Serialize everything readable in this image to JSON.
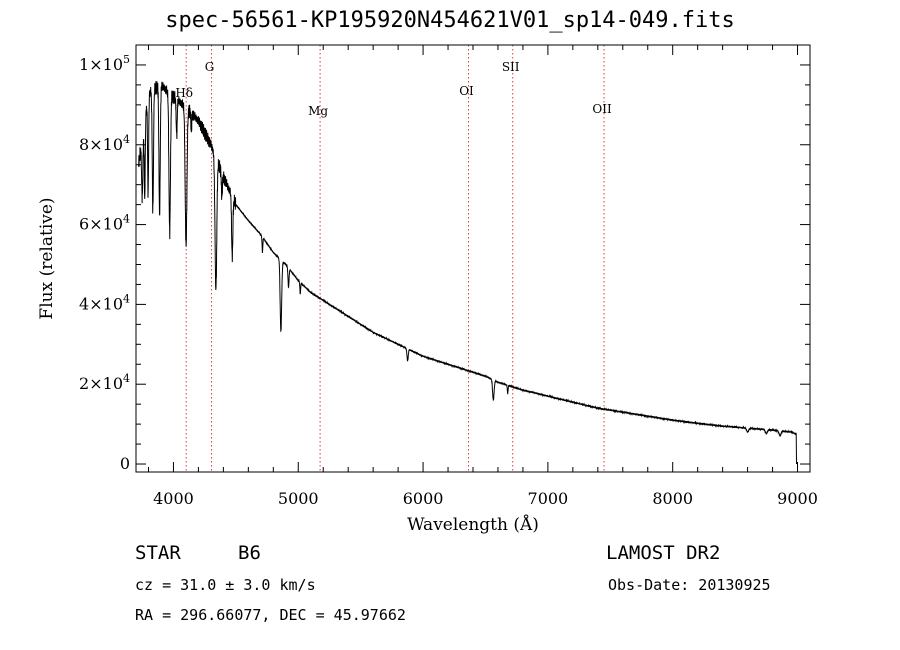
{
  "title": "spec-56561-KP195920N454621V01_sp14-049.fits",
  "info": {
    "class_label": "STAR",
    "subclass_label": "B6",
    "survey": "LAMOST DR2",
    "cz": "cz = 31.0 ± 3.0 km/s",
    "obs_date": "Obs-Date: 20130925",
    "coords": "RA = 296.66077, DEC =  45.97662"
  },
  "chart_data": {
    "type": "line",
    "title": "spec-56561-KP195920N454621V01_sp14-049.fits",
    "xlabel": "Wavelength (Å)",
    "ylabel": "Flux (relative)",
    "xlim": [
      3700,
      9100
    ],
    "ylim": [
      -2000,
      105000
    ],
    "xticks": [
      {
        "value": 4000,
        "label": "4000"
      },
      {
        "value": 5000,
        "label": "5000"
      },
      {
        "value": 6000,
        "label": "6000"
      },
      {
        "value": 7000,
        "label": "7000"
      },
      {
        "value": 8000,
        "label": "8000"
      },
      {
        "value": 9000,
        "label": "9000"
      }
    ],
    "yticks": [
      {
        "value": 0,
        "label": "0",
        "exp": ""
      },
      {
        "value": 20000,
        "label": "2×10",
        "exp": "4"
      },
      {
        "value": 40000,
        "label": "4×10",
        "exp": "4"
      },
      {
        "value": 60000,
        "label": "6×10",
        "exp": "4"
      },
      {
        "value": 80000,
        "label": "8×10",
        "exp": "4"
      },
      {
        "value": 100000,
        "label": "1×10",
        "exp": "5"
      }
    ],
    "line_color": "#000000",
    "marker_color": "#e0403a",
    "lines": [
      {
        "label": "Hδ",
        "x": 4102,
        "label_y": 92000
      },
      {
        "label": "G",
        "x": 4305,
        "label_y": 98500
      },
      {
        "label": "Mg",
        "x": 5175,
        "label_y": 87500
      },
      {
        "label": "OI",
        "x": 6364,
        "label_y": 92500
      },
      {
        "label": "SII",
        "x": 6718,
        "label_y": 98500
      },
      {
        "label": "OII",
        "x": 7450,
        "label_y": 88000
      }
    ],
    "continuum": [
      [
        3720,
        75000
      ],
      [
        3800,
        93000
      ],
      [
        3900,
        95000
      ],
      [
        4000,
        92000
      ],
      [
        4100,
        89500
      ],
      [
        4200,
        86000
      ],
      [
        4300,
        80000
      ],
      [
        4400,
        72000
      ],
      [
        4500,
        65000
      ],
      [
        4600,
        61000
      ],
      [
        4700,
        57500
      ],
      [
        4800,
        53000
      ],
      [
        4900,
        50000
      ],
      [
        5000,
        46000
      ],
      [
        5100,
        43000
      ],
      [
        5200,
        41000
      ],
      [
        5300,
        39000
      ],
      [
        5400,
        37000
      ],
      [
        5500,
        35000
      ],
      [
        5600,
        33000
      ],
      [
        5700,
        31500
      ],
      [
        5800,
        30000
      ],
      [
        5900,
        28500
      ],
      [
        6000,
        27000
      ],
      [
        6100,
        26000
      ],
      [
        6200,
        25000
      ],
      [
        6300,
        24000
      ],
      [
        6400,
        23000
      ],
      [
        6500,
        22000
      ],
      [
        6600,
        20500
      ],
      [
        6700,
        19500
      ],
      [
        6800,
        18500
      ],
      [
        6900,
        17800
      ],
      [
        7000,
        17000
      ],
      [
        7200,
        15500
      ],
      [
        7400,
        14000
      ],
      [
        7600,
        13000
      ],
      [
        7800,
        12000
      ],
      [
        8000,
        11000
      ],
      [
        8200,
        10200
      ],
      [
        8400,
        9500
      ],
      [
        8600,
        9000
      ],
      [
        8800,
        8500
      ],
      [
        8950,
        8000
      ],
      [
        8990,
        7500
      ]
    ],
    "absorption": [
      [
        3750,
        15000,
        5
      ],
      [
        3770,
        20000,
        4
      ],
      [
        3797,
        25000,
        4
      ],
      [
        3835,
        30000,
        5
      ],
      [
        3889,
        33000,
        5
      ],
      [
        3970,
        35000,
        6
      ],
      [
        4026,
        9000,
        4
      ],
      [
        4101,
        35000,
        7
      ],
      [
        4143,
        5000,
        3
      ],
      [
        4340,
        33000,
        7
      ],
      [
        4388,
        6000,
        4
      ],
      [
        4471,
        15000,
        5
      ],
      [
        4713,
        4000,
        3
      ],
      [
        4861,
        18000,
        6
      ],
      [
        4922,
        5000,
        4
      ],
      [
        5016,
        3000,
        3
      ],
      [
        5876,
        3000,
        5
      ],
      [
        6563,
        5000,
        6
      ],
      [
        6678,
        2000,
        3
      ],
      [
        8600,
        1000,
        8
      ],
      [
        8750,
        1000,
        8
      ],
      [
        8860,
        1200,
        8
      ]
    ]
  }
}
